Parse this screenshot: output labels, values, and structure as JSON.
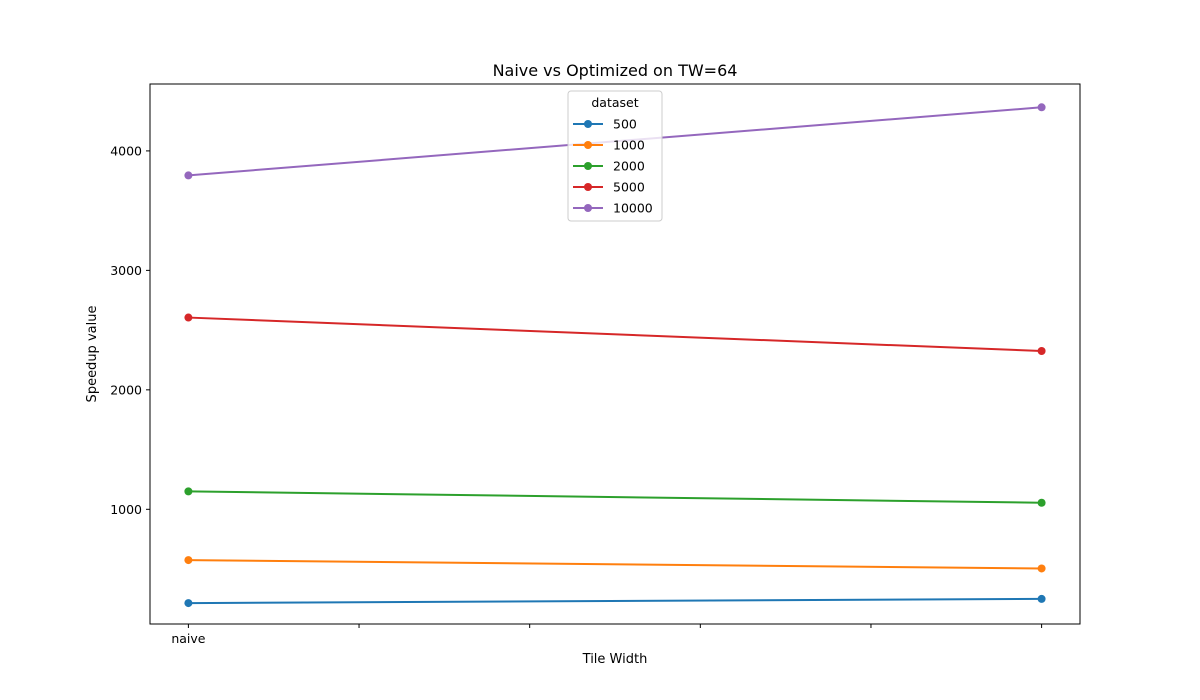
{
  "chart_data": {
    "type": "line",
    "title": "Naive vs Optimized on TW=64",
    "xlabel": "Tile Width",
    "ylabel": "Speedup value",
    "x_positions": [
      0,
      1
    ],
    "x_ticks": [
      0,
      0.2,
      0.4,
      0.6,
      0.8,
      1
    ],
    "x_tick_labels": [
      "naive",
      "",
      "",
      "",
      "",
      ""
    ],
    "xlim": [
      -0.045,
      1.045
    ],
    "ylim": [
      40,
      4560
    ],
    "y_ticks": [
      1000,
      2000,
      3000,
      4000
    ],
    "y_tick_labels": [
      "1000",
      "2000",
      "3000",
      "4000"
    ],
    "grid": false,
    "legend": {
      "title": "dataset",
      "placement": "upper center"
    },
    "series": [
      {
        "name": "500",
        "color": "#1f77b4",
        "values": [
          215,
          250
        ]
      },
      {
        "name": "1000",
        "color": "#ff7f0e",
        "values": [
          575,
          505
        ]
      },
      {
        "name": "2000",
        "color": "#2ca02c",
        "values": [
          1150,
          1055
        ]
      },
      {
        "name": "5000",
        "color": "#d62728",
        "values": [
          2605,
          2325
        ]
      },
      {
        "name": "10000",
        "color": "#9467bd",
        "values": [
          3795,
          4365
        ]
      }
    ]
  }
}
